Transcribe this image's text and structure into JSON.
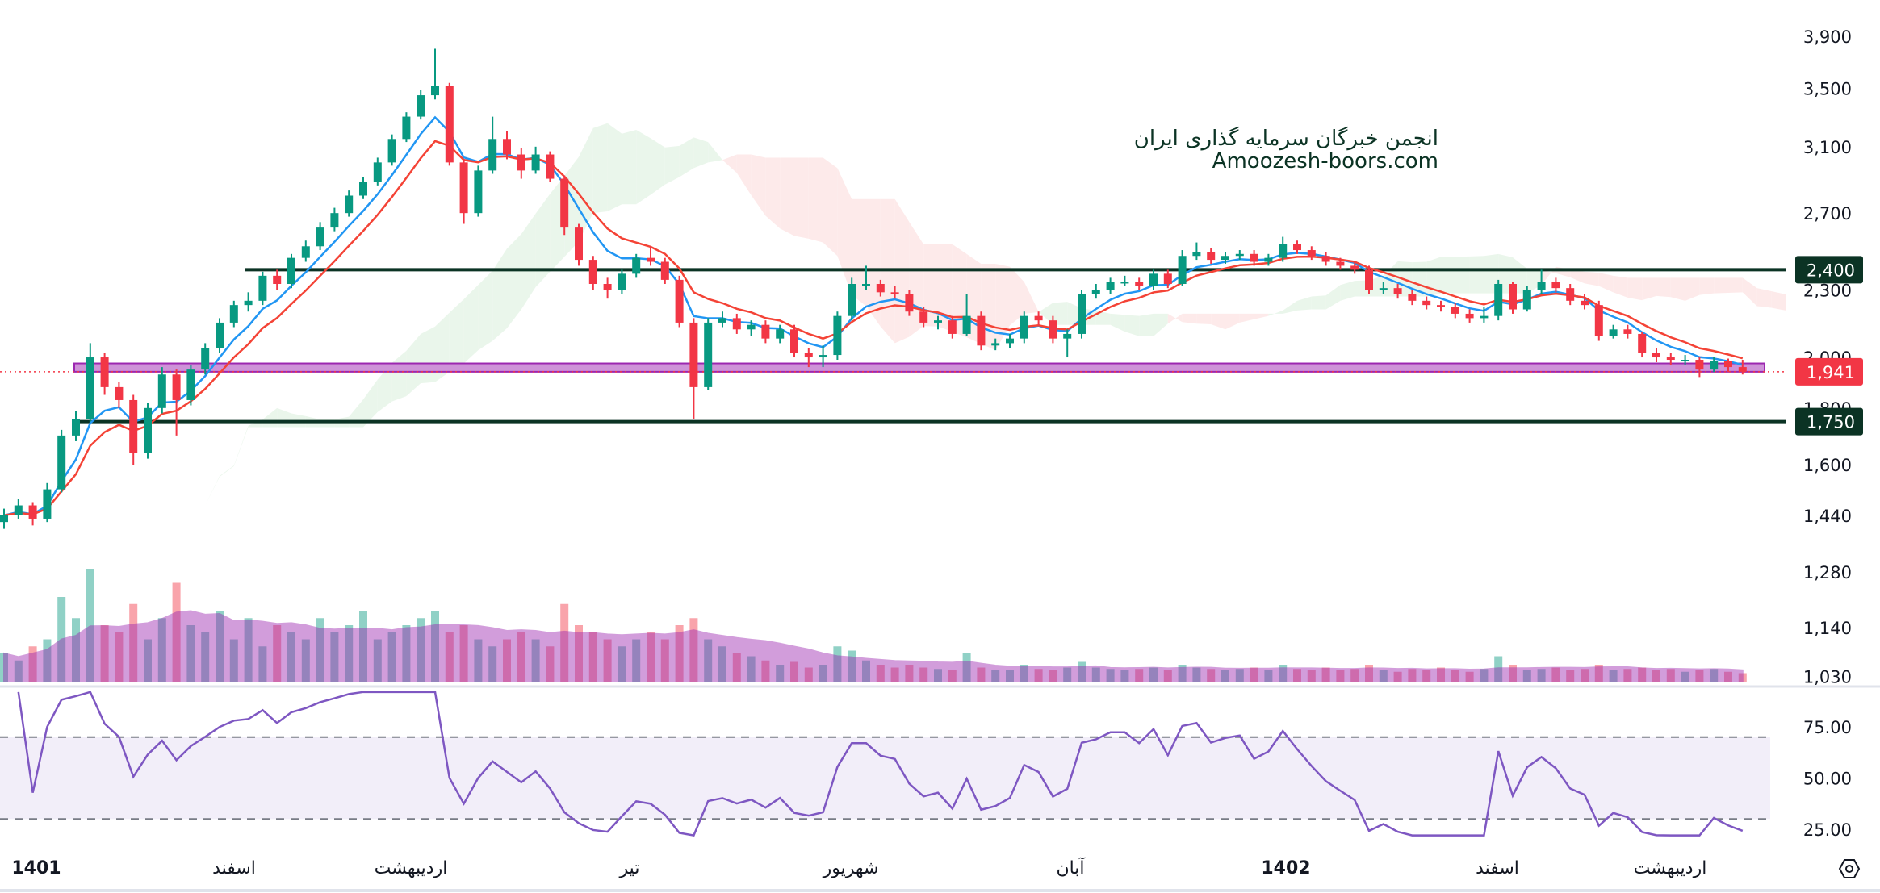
{
  "watermark": {
    "line1": "انجمن خبرگان سرمایه گذاری ایران",
    "line2": "Amoozesh-boors.com"
  },
  "colors": {
    "up": "#089981",
    "down": "#f23645",
    "ema_fast": "#2196f3",
    "ema_slow": "#f44336",
    "rsi": "#7e57c2",
    "volume_ma": "#9c27b0",
    "level_line": "#0b3324",
    "zone": "#ce93d8",
    "cloud_up": "#e8f5e9",
    "cloud_down": "#fde8e8"
  },
  "chart_data": {
    "type": "candlestick",
    "price_scale": "log",
    "ylim": [
      1030,
      3900
    ],
    "price_ticks": [
      {
        "value": 3900,
        "label": "3,900"
      },
      {
        "value": 3500,
        "label": "3,500"
      },
      {
        "value": 3100,
        "label": "3,100"
      },
      {
        "value": 2700,
        "label": "2,700"
      },
      {
        "value": 2300,
        "label": "2,300"
      },
      {
        "value": 2000,
        "label": "2,000"
      },
      {
        "value": 1800,
        "label": "1,800"
      },
      {
        "value": 1600,
        "label": "1,600"
      },
      {
        "value": 1440,
        "label": "1,440"
      },
      {
        "value": 1280,
        "label": "1,280"
      },
      {
        "value": 1140,
        "label": "1,140"
      },
      {
        "value": 1030,
        "label": "1,030"
      }
    ],
    "time_labels": [
      "1401",
      "اسفند",
      "اردیبهشت",
      "تیر",
      "شهریور",
      "آبان",
      "1402",
      "اسفند",
      "اردیبهشت"
    ],
    "horizontal_levels": [
      {
        "value": 2400,
        "label": "2,400"
      },
      {
        "value": 1750,
        "label": "1,750"
      }
    ],
    "support_zone": [
      1941,
      1975
    ],
    "last_price": {
      "value": 1941,
      "label": "1,941"
    },
    "rsi_ticks": [
      {
        "value": 75,
        "label": "75.00"
      },
      {
        "value": 50,
        "label": "50.00"
      },
      {
        "value": 25,
        "label": "25.00"
      }
    ],
    "rsi_bands": [
      70,
      30
    ],
    "ohlc": [
      [
        1420,
        1460,
        1400,
        1440
      ],
      [
        1440,
        1490,
        1430,
        1470
      ],
      [
        1470,
        1480,
        1410,
        1430
      ],
      [
        1430,
        1540,
        1420,
        1520
      ],
      [
        1520,
        1720,
        1510,
        1700
      ],
      [
        1700,
        1790,
        1680,
        1760
      ],
      [
        1760,
        2060,
        1750,
        2000
      ],
      [
        2000,
        2020,
        1850,
        1880
      ],
      [
        1880,
        1900,
        1800,
        1830
      ],
      [
        1830,
        1850,
        1600,
        1640
      ],
      [
        1640,
        1820,
        1620,
        1800
      ],
      [
        1800,
        1960,
        1780,
        1930
      ],
      [
        1930,
        1950,
        1700,
        1830
      ],
      [
        1830,
        1970,
        1810,
        1950
      ],
      [
        1950,
        2060,
        1930,
        2040
      ],
      [
        2040,
        2170,
        2020,
        2150
      ],
      [
        2150,
        2250,
        2130,
        2230
      ],
      [
        2230,
        2290,
        2200,
        2250
      ],
      [
        2250,
        2390,
        2230,
        2370
      ],
      [
        2370,
        2400,
        2300,
        2330
      ],
      [
        2330,
        2480,
        2310,
        2460
      ],
      [
        2460,
        2550,
        2440,
        2520
      ],
      [
        2520,
        2650,
        2500,
        2620
      ],
      [
        2620,
        2730,
        2600,
        2700
      ],
      [
        2700,
        2830,
        2680,
        2800
      ],
      [
        2800,
        2910,
        2780,
        2880
      ],
      [
        2880,
        3030,
        2860,
        3000
      ],
      [
        3000,
        3180,
        2980,
        3150
      ],
      [
        3150,
        3330,
        3130,
        3300
      ],
      [
        3300,
        3490,
        3280,
        3450
      ],
      [
        3450,
        3800,
        3420,
        3520
      ],
      [
        3520,
        3540,
        2980,
        3000
      ],
      [
        3000,
        3020,
        2640,
        2700
      ],
      [
        2700,
        2980,
        2680,
        2950
      ],
      [
        2950,
        3300,
        2930,
        3150
      ],
      [
        3150,
        3200,
        3020,
        3050
      ],
      [
        3050,
        3090,
        2900,
        2950
      ],
      [
        2950,
        3100,
        2930,
        3050
      ],
      [
        3050,
        3070,
        2880,
        2900
      ],
      [
        2900,
        2920,
        2580,
        2620
      ],
      [
        2620,
        2640,
        2420,
        2450
      ],
      [
        2450,
        2470,
        2300,
        2330
      ],
      [
        2330,
        2360,
        2260,
        2300
      ],
      [
        2300,
        2400,
        2280,
        2380
      ],
      [
        2380,
        2480,
        2360,
        2460
      ],
      [
        2460,
        2520,
        2420,
        2440
      ],
      [
        2440,
        2460,
        2330,
        2350
      ],
      [
        2350,
        2370,
        2130,
        2150
      ],
      [
        2150,
        2170,
        1760,
        1880
      ],
      [
        1880,
        2170,
        1870,
        2150
      ],
      [
        2150,
        2200,
        2130,
        2170
      ],
      [
        2170,
        2190,
        2100,
        2120
      ],
      [
        2120,
        2160,
        2090,
        2140
      ],
      [
        2140,
        2160,
        2060,
        2080
      ],
      [
        2080,
        2140,
        2060,
        2120
      ],
      [
        2120,
        2140,
        2000,
        2020
      ],
      [
        2020,
        2040,
        1960,
        2000
      ],
      [
        2000,
        2050,
        1960,
        2010
      ],
      [
        2010,
        2200,
        1990,
        2180
      ],
      [
        2180,
        2360,
        2160,
        2330
      ],
      [
        2330,
        2420,
        2300,
        2330
      ],
      [
        2330,
        2350,
        2270,
        2290
      ],
      [
        2290,
        2320,
        2260,
        2280
      ],
      [
        2280,
        2300,
        2180,
        2200
      ],
      [
        2200,
        2220,
        2130,
        2150
      ],
      [
        2150,
        2180,
        2120,
        2160
      ],
      [
        2160,
        2180,
        2080,
        2100
      ],
      [
        2100,
        2280,
        2090,
        2180
      ],
      [
        2180,
        2200,
        2030,
        2050
      ],
      [
        2050,
        2080,
        2030,
        2060
      ],
      [
        2060,
        2100,
        2040,
        2080
      ],
      [
        2080,
        2200,
        2060,
        2180
      ],
      [
        2180,
        2200,
        2140,
        2160
      ],
      [
        2160,
        2180,
        2060,
        2080
      ],
      [
        2080,
        2120,
        2000,
        2100
      ],
      [
        2100,
        2300,
        2080,
        2280
      ],
      [
        2280,
        2330,
        2260,
        2300
      ],
      [
        2300,
        2360,
        2280,
        2340
      ],
      [
        2340,
        2370,
        2320,
        2340
      ],
      [
        2340,
        2360,
        2300,
        2320
      ],
      [
        2320,
        2400,
        2300,
        2380
      ],
      [
        2380,
        2400,
        2310,
        2330
      ],
      [
        2330,
        2500,
        2320,
        2470
      ],
      [
        2470,
        2540,
        2450,
        2490
      ],
      [
        2490,
        2510,
        2430,
        2450
      ],
      [
        2450,
        2490,
        2430,
        2470
      ],
      [
        2470,
        2500,
        2450,
        2480
      ],
      [
        2480,
        2500,
        2420,
        2440
      ],
      [
        2440,
        2480,
        2420,
        2460
      ],
      [
        2460,
        2570,
        2440,
        2530
      ],
      [
        2530,
        2550,
        2480,
        2500
      ],
      [
        2500,
        2520,
        2450,
        2470
      ],
      [
        2470,
        2490,
        2420,
        2440
      ],
      [
        2440,
        2460,
        2400,
        2420
      ],
      [
        2420,
        2440,
        2380,
        2400
      ],
      [
        2400,
        2420,
        2280,
        2300
      ],
      [
        2300,
        2340,
        2280,
        2310
      ],
      [
        2310,
        2330,
        2260,
        2280
      ],
      [
        2280,
        2300,
        2230,
        2250
      ],
      [
        2250,
        2270,
        2210,
        2230
      ],
      [
        2230,
        2250,
        2200,
        2220
      ],
      [
        2220,
        2240,
        2170,
        2190
      ],
      [
        2190,
        2210,
        2150,
        2170
      ],
      [
        2170,
        2220,
        2150,
        2180
      ],
      [
        2180,
        2350,
        2160,
        2330
      ],
      [
        2330,
        2340,
        2190,
        2210
      ],
      [
        2210,
        2320,
        2200,
        2300
      ],
      [
        2300,
        2400,
        2280,
        2340
      ],
      [
        2340,
        2360,
        2290,
        2310
      ],
      [
        2310,
        2330,
        2230,
        2250
      ],
      [
        2250,
        2280,
        2210,
        2230
      ],
      [
        2230,
        2250,
        2070,
        2090
      ],
      [
        2090,
        2140,
        2080,
        2120
      ],
      [
        2120,
        2140,
        2080,
        2100
      ],
      [
        2100,
        2110,
        2000,
        2020
      ],
      [
        2020,
        2040,
        1980,
        2000
      ],
      [
        2000,
        2020,
        1970,
        1990
      ],
      [
        1990,
        2010,
        1970,
        1990
      ],
      [
        1990,
        2000,
        1920,
        1950
      ],
      [
        1950,
        2000,
        1940,
        1985
      ],
      [
        1985,
        1995,
        1940,
        1960
      ],
      [
        1960,
        1990,
        1930,
        1941
      ]
    ],
    "volume": [
      20,
      15,
      25,
      30,
      60,
      45,
      80,
      40,
      35,
      55,
      30,
      45,
      70,
      40,
      35,
      50,
      30,
      45,
      25,
      40,
      35,
      30,
      45,
      35,
      40,
      50,
      30,
      35,
      40,
      45,
      50,
      35,
      40,
      30,
      25,
      30,
      35,
      30,
      25,
      55,
      40,
      35,
      30,
      25,
      30,
      35,
      30,
      40,
      45,
      30,
      25,
      20,
      18,
      15,
      12,
      14,
      10,
      12,
      25,
      22,
      15,
      12,
      10,
      12,
      10,
      9,
      8,
      20,
      10,
      8,
      8,
      12,
      9,
      8,
      10,
      14,
      10,
      9,
      8,
      9,
      10,
      8,
      12,
      10,
      9,
      8,
      9,
      10,
      8,
      12,
      9,
      8,
      10,
      8,
      9,
      12,
      8,
      7,
      9,
      8,
      10,
      8,
      7,
      9,
      18,
      12,
      8,
      9,
      10,
      8,
      9,
      12,
      8,
      9,
      10,
      8,
      9,
      7,
      8,
      9,
      7,
      6
    ]
  }
}
